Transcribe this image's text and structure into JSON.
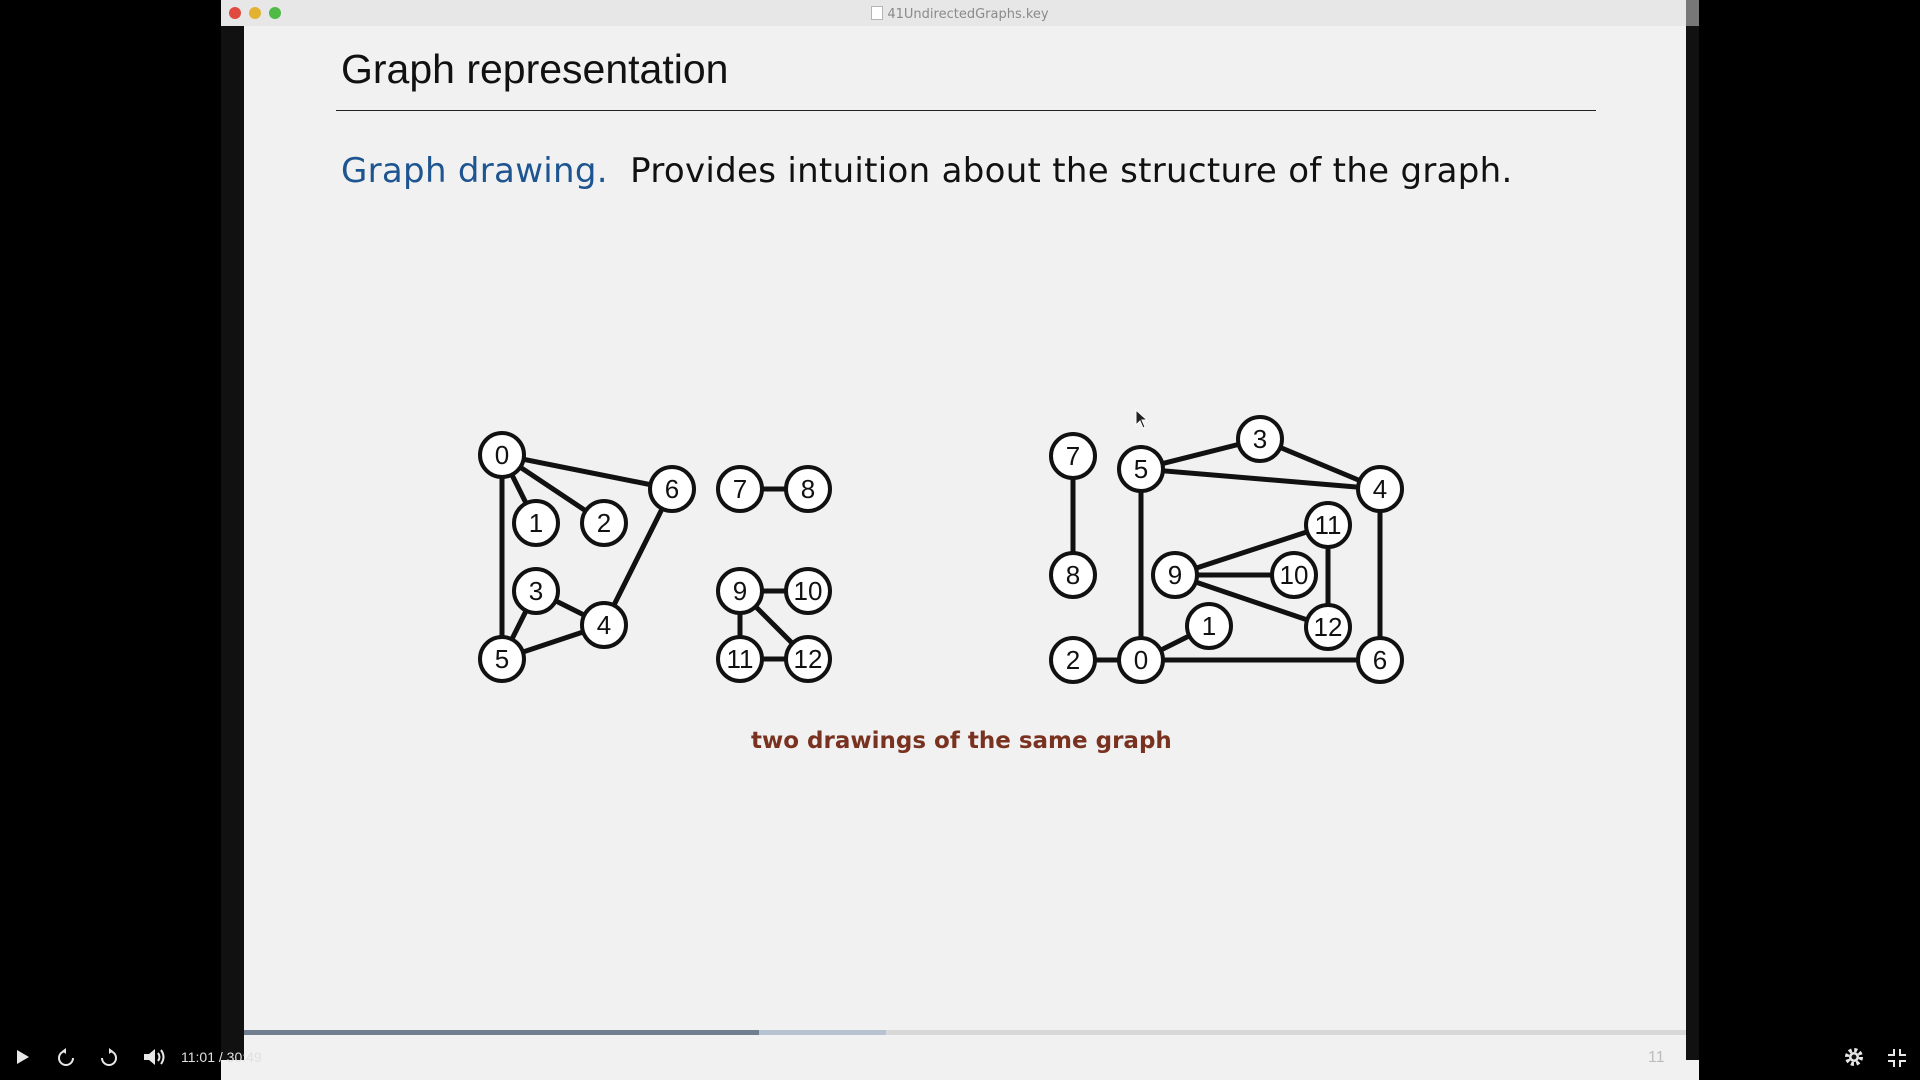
{
  "window": {
    "title": "41UndirectedGraphs.key"
  },
  "slide": {
    "title": "Graph representation",
    "lead": "Graph drawing.",
    "text": "Provides intuition about the structure of the graph.",
    "caption": "two drawings of the same graph",
    "number": "11"
  },
  "player": {
    "time": "11:01 / 30:49",
    "progress_fraction": 0.357,
    "buffered_fraction": 0.445
  },
  "colors": {
    "lead": "#1e5590",
    "caption": "#7a3220"
  },
  "icons": [
    "play-icon",
    "rewind-icon",
    "forward-icon",
    "volume-icon",
    "settings-icon",
    "exit-fullscreen-icon"
  ],
  "graph_left": {
    "nodes": [
      "0",
      "1",
      "2",
      "3",
      "4",
      "5",
      "6",
      "7",
      "8",
      "9",
      "10",
      "11",
      "12"
    ],
    "edges": [
      [
        "0",
        "1"
      ],
      [
        "0",
        "2"
      ],
      [
        "0",
        "5"
      ],
      [
        "0",
        "6"
      ],
      [
        "3",
        "4"
      ],
      [
        "3",
        "5"
      ],
      [
        "4",
        "5"
      ],
      [
        "4",
        "6"
      ],
      [
        "7",
        "8"
      ],
      [
        "9",
        "10"
      ],
      [
        "9",
        "11"
      ],
      [
        "9",
        "12"
      ],
      [
        "11",
        "12"
      ]
    ]
  },
  "graph_right": {
    "nodes": [
      "0",
      "1",
      "2",
      "3",
      "4",
      "5",
      "6",
      "7",
      "8",
      "9",
      "10",
      "11",
      "12"
    ],
    "edges": [
      [
        "0",
        "1"
      ],
      [
        "0",
        "2"
      ],
      [
        "0",
        "5"
      ],
      [
        "0",
        "6"
      ],
      [
        "3",
        "4"
      ],
      [
        "3",
        "5"
      ],
      [
        "4",
        "5"
      ],
      [
        "4",
        "6"
      ],
      [
        "7",
        "8"
      ],
      [
        "9",
        "10"
      ],
      [
        "9",
        "11"
      ],
      [
        "9",
        "12"
      ],
      [
        "11",
        "12"
      ]
    ]
  }
}
